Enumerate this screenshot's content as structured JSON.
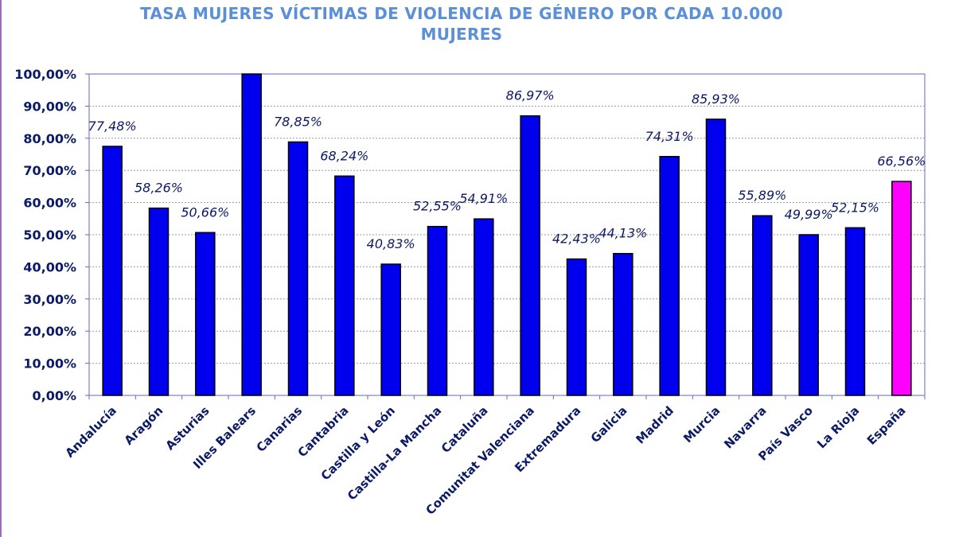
{
  "chart_data": {
    "type": "bar",
    "title_line1": "TASA MUJERES VÍCTIMAS DE VIOLENCIA DE GÉNERO POR CADA 10.000",
    "title_line2": "MUJERES",
    "categories": [
      "Andalucía",
      "Aragón",
      "Asturias",
      "Illes Balears",
      "Canarias",
      "Cantabria",
      "Castilla y León",
      "Castilla-La Mancha",
      "Cataluña",
      "Comunitat Valenciana",
      "Extremadura",
      "Galicia",
      "Madrid",
      "Murcia",
      "Navarra",
      "País Vasco",
      "La Rioja",
      "España"
    ],
    "values": [
      77.48,
      58.26,
      50.66,
      100,
      78.85,
      68.24,
      40.83,
      52.55,
      54.91,
      86.97,
      42.43,
      44.13,
      74.31,
      85.93,
      55.89,
      49.99,
      52.15,
      66.56
    ],
    "data_labels": [
      "77,48%",
      "58,26%",
      "50,66%",
      "",
      "78,85%",
      "68,24%",
      "40,83%",
      "52,55%",
      "54,91%",
      "86,97%",
      "42,43%",
      "44,13%",
      "74,31%",
      "85,93%",
      "55,89%",
      "49,99%",
      "52,15%",
      "66,56%"
    ],
    "ylim": [
      0,
      100
    ],
    "yticks": [
      0,
      10,
      20,
      30,
      40,
      50,
      60,
      70,
      80,
      90,
      100
    ],
    "ytick_labels": [
      "0,00%",
      "10,00%",
      "20,00%",
      "30,00%",
      "40,00%",
      "50,00%",
      "60,00%",
      "70,00%",
      "80,00%",
      "90,00%",
      "100,00%"
    ],
    "grid": true,
    "colors": {
      "bar": "#0000ee",
      "highlight_bar": "#ff00ff",
      "bar_edge": "#000000",
      "axis": "#6666cc",
      "grid": "#999999",
      "text": "#0b1a66",
      "title": "#5b8fd6"
    },
    "highlight_category": "España"
  }
}
